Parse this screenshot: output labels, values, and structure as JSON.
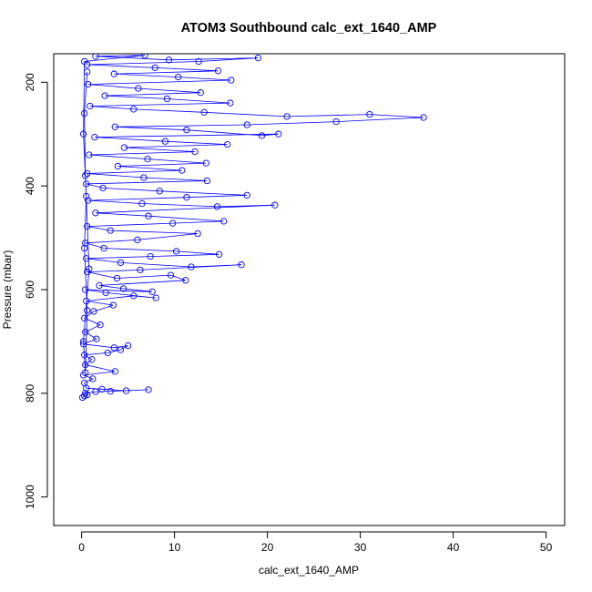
{
  "chart_data": {
    "type": "scatter",
    "title": "ATOM3 Southbound calc_ext_1640_AMP",
    "xlabel": "calc_ext_1640_AMP",
    "ylabel": "Pressure (mbar)",
    "xlim": [
      -3,
      52
    ],
    "ylim": [
      1055,
      145
    ],
    "y_reversed": true,
    "xticks": [
      0,
      10,
      20,
      30,
      40,
      50
    ],
    "yticks": [
      200,
      400,
      600,
      800,
      1000
    ],
    "series_color": "#0000ff",
    "marker": "open-circle",
    "connected": true,
    "series": [
      {
        "points": [
          [
            0.1,
            808
          ],
          [
            0.3,
            805
          ],
          [
            0.6,
            803
          ],
          [
            0.4,
            800
          ],
          [
            1.5,
            797
          ],
          [
            3.1,
            796
          ],
          [
            7.2,
            793
          ],
          [
            4.8,
            795
          ],
          [
            2.2,
            792
          ],
          [
            0.5,
            790
          ],
          [
            0.3,
            780
          ],
          [
            1.2,
            772
          ],
          [
            0.2,
            765
          ],
          [
            3.6,
            758
          ],
          [
            0.4,
            745
          ],
          [
            1.1,
            735
          ],
          [
            0.3,
            726
          ],
          [
            2.8,
            722
          ],
          [
            4.2,
            716
          ],
          [
            5.0,
            708
          ],
          [
            3.5,
            712
          ],
          [
            0.2,
            705
          ],
          [
            1.6,
            695
          ],
          [
            0.4,
            682
          ],
          [
            2.0,
            668
          ],
          [
            0.3,
            655
          ],
          [
            1.3,
            642
          ],
          [
            3.4,
            630
          ],
          [
            0.5,
            622
          ],
          [
            5.6,
            612
          ],
          [
            8.0,
            616
          ],
          [
            2.6,
            606
          ],
          [
            0.4,
            600
          ],
          [
            7.6,
            604
          ],
          [
            4.5,
            598
          ],
          [
            1.9,
            592
          ],
          [
            11.2,
            582
          ],
          [
            9.6,
            572
          ],
          [
            3.8,
            578
          ],
          [
            0.6,
            566
          ],
          [
            6.3,
            562
          ],
          [
            17.2,
            552
          ],
          [
            11.8,
            556
          ],
          [
            4.2,
            548
          ],
          [
            0.5,
            540
          ],
          [
            7.4,
            536
          ],
          [
            14.8,
            532
          ],
          [
            10.2,
            526
          ],
          [
            2.4,
            520
          ],
          [
            0.4,
            510
          ],
          [
            6.0,
            504
          ],
          [
            12.5,
            492
          ],
          [
            3.1,
            486
          ],
          [
            0.6,
            478
          ],
          [
            9.8,
            472
          ],
          [
            15.3,
            468
          ],
          [
            7.2,
            458
          ],
          [
            1.5,
            452
          ],
          [
            20.8,
            437
          ],
          [
            14.6,
            440
          ],
          [
            6.5,
            434
          ],
          [
            0.7,
            428
          ],
          [
            11.3,
            422
          ],
          [
            17.8,
            418
          ],
          [
            8.4,
            410
          ],
          [
            2.3,
            404
          ],
          [
            0.5,
            396
          ],
          [
            13.5,
            390
          ],
          [
            6.7,
            384
          ],
          [
            0.6,
            376
          ],
          [
            10.8,
            370
          ],
          [
            3.9,
            362
          ],
          [
            13.4,
            356
          ],
          [
            7.1,
            348
          ],
          [
            0.8,
            340
          ],
          [
            12.2,
            334
          ],
          [
            4.6,
            326
          ],
          [
            15.7,
            320
          ],
          [
            9.0,
            314
          ],
          [
            1.4,
            306
          ],
          [
            21.2,
            300
          ],
          [
            19.4,
            303
          ],
          [
            11.3,
            292
          ],
          [
            3.6,
            286
          ],
          [
            17.8,
            282
          ],
          [
            27.4,
            276
          ],
          [
            36.8,
            268
          ],
          [
            31.0,
            262
          ],
          [
            22.1,
            266
          ],
          [
            13.2,
            258
          ],
          [
            5.6,
            252
          ],
          [
            0.9,
            246
          ],
          [
            16.0,
            240
          ],
          [
            9.2,
            232
          ],
          [
            2.5,
            226
          ],
          [
            12.8,
            220
          ],
          [
            6.1,
            212
          ],
          [
            0.7,
            204
          ],
          [
            16.1,
            196
          ],
          [
            10.4,
            190
          ],
          [
            3.5,
            184
          ],
          [
            14.7,
            178
          ],
          [
            7.9,
            172
          ],
          [
            0.6,
            166
          ],
          [
            12.6,
            160
          ],
          [
            19.0,
            153
          ],
          [
            9.4,
            157
          ],
          [
            1.5,
            150
          ],
          [
            6.8,
            148
          ],
          [
            0.3,
            160
          ],
          [
            0.2,
            300
          ],
          [
            0.5,
            420
          ],
          [
            0.3,
            520
          ],
          [
            0.6,
            640
          ],
          [
            0.4,
            760
          ],
          [
            0.2,
            700
          ],
          [
            0.8,
            560
          ],
          [
            0.4,
            380
          ],
          [
            0.3,
            260
          ],
          [
            0.6,
            180
          ]
        ]
      }
    ]
  }
}
